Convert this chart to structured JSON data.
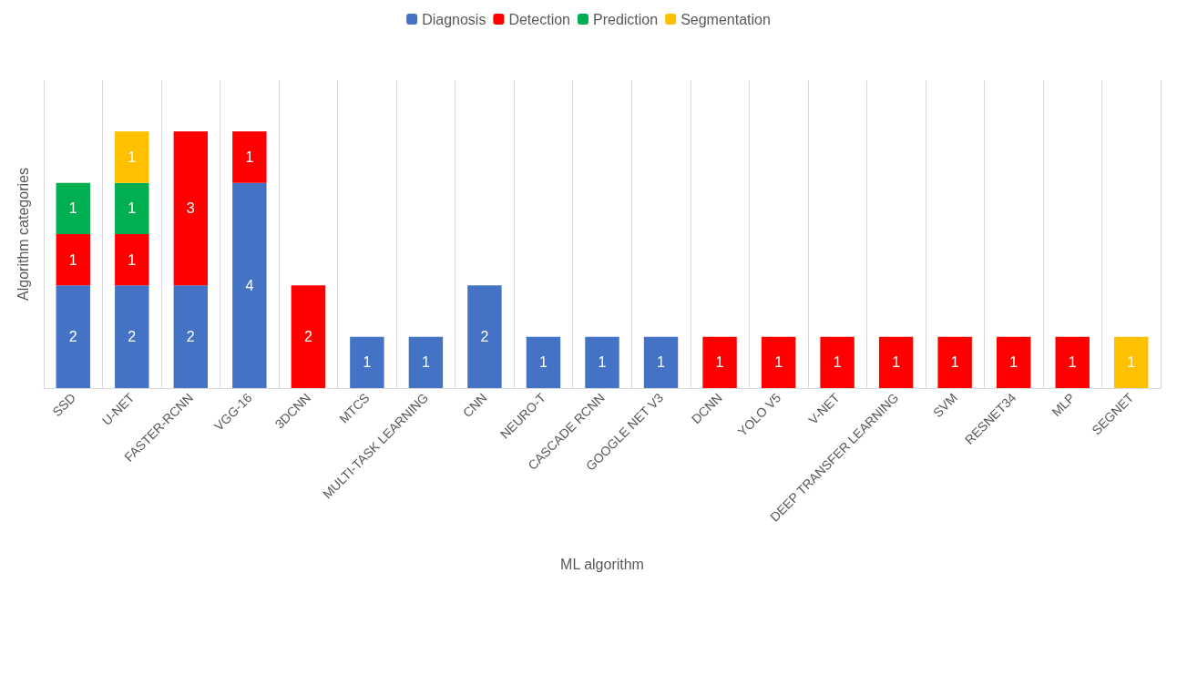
{
  "chart_data": {
    "type": "bar",
    "stacked": true,
    "xlabel": "ML algorithm",
    "ylabel": "Algorithm categories",
    "categories": [
      "SSD",
      "U-NET",
      "FASTER-RCNN",
      "VGG-16",
      "3DCNN",
      "MTCS",
      "MULTI-TASK LEARNING",
      "CNN",
      "NEURO-T",
      "CASCADE RCNN",
      "GOOGLE NET V3",
      "DCNN",
      "YOLO V5",
      "V-NET",
      "DEEP TRANSFER LEARNING",
      "SVM",
      "RESNET34",
      "MLP",
      "SEGNET"
    ],
    "series": [
      {
        "name": "Diagnosis",
        "color": "#4472c4",
        "values": [
          2,
          2,
          2,
          4,
          null,
          1,
          1,
          2,
          1,
          1,
          1,
          null,
          null,
          null,
          null,
          null,
          null,
          null,
          null
        ]
      },
      {
        "name": "Detection",
        "color": "#ff0000",
        "values": [
          1,
          1,
          3,
          1,
          2,
          null,
          null,
          null,
          null,
          null,
          null,
          1,
          1,
          1,
          1,
          1,
          1,
          1,
          null
        ]
      },
      {
        "name": "Prediction",
        "color": "#00b050",
        "values": [
          1,
          1,
          null,
          null,
          null,
          null,
          null,
          null,
          null,
          null,
          null,
          null,
          null,
          null,
          null,
          null,
          null,
          null,
          null
        ]
      },
      {
        "name": "Segmentation",
        "color": "#ffc000",
        "values": [
          null,
          1,
          null,
          null,
          null,
          null,
          null,
          null,
          null,
          null,
          null,
          null,
          null,
          null,
          null,
          null,
          null,
          null,
          1
        ]
      }
    ],
    "ylim": [
      0,
      6
    ],
    "data_labels": true,
    "grid": "x",
    "legend": "top",
    "tick_labels": "x"
  }
}
